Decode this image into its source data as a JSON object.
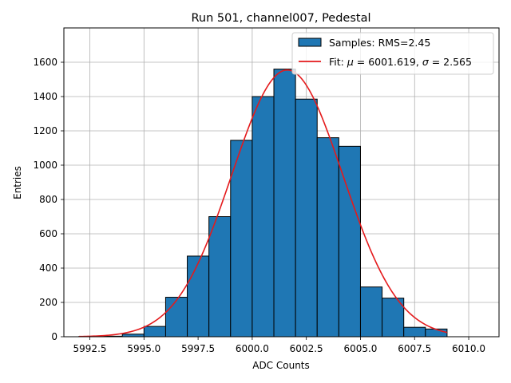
{
  "chart_data": {
    "type": "bar",
    "title": "Run 501, channel007, Pedestal",
    "xlabel": "ADC Counts",
    "ylabel": "Entries",
    "xlim": [
      5991.3,
      6011.4
    ],
    "ylim": [
      0,
      1800
    ],
    "xticks": [
      5992.5,
      5995.0,
      5997.5,
      6000.0,
      6002.5,
      6005.0,
      6007.5,
      6010.0
    ],
    "xtick_labels": [
      "5992.5",
      "5995.0",
      "5997.5",
      "6000.0",
      "6002.5",
      "6005.0",
      "6007.5",
      "6010.0"
    ],
    "yticks": [
      0,
      200,
      400,
      600,
      800,
      1000,
      1200,
      1400,
      1600
    ],
    "ytick_labels": [
      "0",
      "200",
      "400",
      "600",
      "800",
      "1000",
      "1200",
      "1400",
      "1600"
    ],
    "grid": true,
    "legend_position": "top-right",
    "histogram": {
      "name": "Samples: RMS=2.45",
      "color": "#1f77b4",
      "edge_color": "#000000",
      "bin_edges": [
        5992.0,
        5993.0,
        5994.0,
        5995.0,
        5996.0,
        5997.0,
        5998.0,
        5999.0,
        6000.0,
        6001.0,
        6002.0,
        6003.0,
        6004.0,
        6005.0,
        6006.0,
        6007.0,
        6008.0,
        6009.0
      ],
      "values": [
        2,
        3,
        15,
        60,
        230,
        470,
        700,
        1145,
        1400,
        1560,
        1385,
        1160,
        1110,
        290,
        225,
        55,
        45
      ]
    },
    "fit": {
      "name": "Fit: μ = 6001.619, σ = 2.565",
      "label_prefix": "Fit: ",
      "mu_symbol": "μ",
      "mu_text": " = 6001.619, ",
      "sigma_symbol": "σ",
      "sigma_text": " = 2.565",
      "color": "#e41a1c",
      "mu": 6001.619,
      "sigma": 2.565,
      "amplitude": 1555,
      "x_range": [
        5992.0,
        6009.0
      ]
    }
  }
}
